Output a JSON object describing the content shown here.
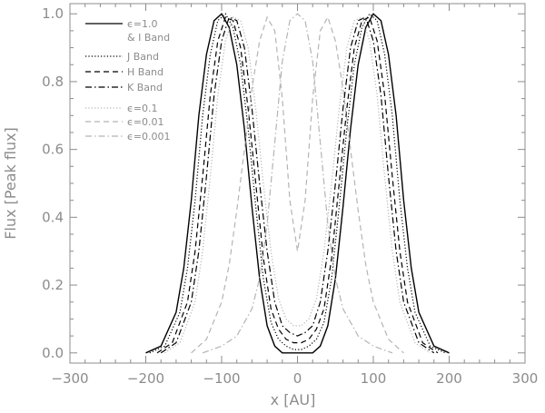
{
  "chart_data": {
    "type": "line",
    "title": "",
    "xlabel": "x   [AU]",
    "ylabel": "Flux  [Peak flux]",
    "xlim": [
      -300,
      300
    ],
    "ylim": [
      -0.03,
      1.03
    ],
    "x_ticks": [
      -300,
      -200,
      -100,
      0,
      100,
      200,
      300
    ],
    "x_tick_labels": [
      "−300",
      "−200",
      "−100",
      "0",
      "100",
      "200",
      "300"
    ],
    "y_ticks": [
      0.0,
      0.2,
      0.4,
      0.6,
      0.8,
      1.0
    ],
    "y_tick_labels": [
      "0.0",
      "0.2",
      "0.4",
      "0.6",
      "0.8",
      "1.0"
    ],
    "grid": false,
    "legend_position": "top-left",
    "legend": [
      {
        "label": "ϵ=1.0",
        "sub_label": "& I Band",
        "style": "solid",
        "color": "#000000"
      },
      {
        "label": "J Band",
        "style": "dotted",
        "color": "#000000"
      },
      {
        "label": "H Band",
        "style": "dashed",
        "color": "#000000"
      },
      {
        "label": "K Band",
        "style": "dashdot",
        "color": "#000000"
      },
      {
        "label": "ϵ=0.1",
        "style": "dotted",
        "color": "#b4b4b4"
      },
      {
        "label": "ϵ=0.01",
        "style": "dashed",
        "color": "#b4b4b4"
      },
      {
        "label": "ϵ=0.001",
        "style": "dashdot",
        "color": "#b4b4b4"
      }
    ],
    "series": [
      {
        "style": "solid",
        "color": "#000000",
        "x": [
          -200,
          -180,
          -160,
          -150,
          -140,
          -130,
          -120,
          -110,
          -100,
          -90,
          -80,
          -70,
          -60,
          -50,
          -40,
          -30,
          -20,
          -10,
          0,
          10,
          20,
          30,
          40,
          50,
          60,
          70,
          80,
          90,
          100,
          110,
          120,
          130,
          140,
          150,
          160,
          180,
          200
        ],
        "y": [
          0.0,
          0.02,
          0.12,
          0.25,
          0.45,
          0.7,
          0.88,
          0.98,
          1.0,
          0.96,
          0.85,
          0.66,
          0.43,
          0.22,
          0.08,
          0.02,
          0.0,
          0.0,
          0.0,
          0.0,
          0.0,
          0.02,
          0.08,
          0.22,
          0.43,
          0.66,
          0.85,
          0.96,
          1.0,
          0.98,
          0.88,
          0.7,
          0.45,
          0.25,
          0.12,
          0.02,
          0.0
        ]
      },
      {
        "style": "dotted",
        "color": "#000000",
        "x": [
          -195,
          -175,
          -155,
          -145,
          -135,
          -125,
          -115,
          -105,
          -95,
          -85,
          -75,
          -65,
          -55,
          -45,
          -35,
          -25,
          -15,
          -5,
          0,
          5,
          15,
          25,
          35,
          45,
          55,
          65,
          75,
          85,
          95,
          105,
          115,
          125,
          135,
          145,
          155,
          175,
          195
        ],
        "y": [
          0.0,
          0.02,
          0.12,
          0.25,
          0.45,
          0.7,
          0.88,
          0.98,
          1.0,
          0.96,
          0.85,
          0.66,
          0.43,
          0.22,
          0.09,
          0.04,
          0.02,
          0.01,
          0.01,
          0.01,
          0.02,
          0.04,
          0.09,
          0.22,
          0.43,
          0.66,
          0.85,
          0.96,
          1.0,
          0.98,
          0.88,
          0.7,
          0.45,
          0.25,
          0.12,
          0.02,
          0.0
        ]
      },
      {
        "style": "dashed",
        "color": "#000000",
        "x": [
          -185,
          -165,
          -145,
          -135,
          -125,
          -115,
          -105,
          -95,
          -85,
          -75,
          -65,
          -55,
          -45,
          -35,
          -25,
          -15,
          -5,
          0,
          5,
          15,
          25,
          35,
          45,
          55,
          65,
          75,
          85,
          95,
          105,
          115,
          125,
          135,
          145,
          165,
          185
        ],
        "y": [
          0.0,
          0.03,
          0.15,
          0.3,
          0.52,
          0.76,
          0.92,
          0.99,
          0.98,
          0.9,
          0.72,
          0.5,
          0.28,
          0.13,
          0.07,
          0.04,
          0.03,
          0.03,
          0.03,
          0.04,
          0.07,
          0.13,
          0.28,
          0.5,
          0.72,
          0.9,
          0.98,
          0.99,
          0.92,
          0.76,
          0.52,
          0.3,
          0.15,
          0.03,
          0.0
        ]
      },
      {
        "style": "dashdot",
        "color": "#000000",
        "x": [
          -180,
          -160,
          -140,
          -130,
          -120,
          -110,
          -100,
          -90,
          -80,
          -70,
          -60,
          -50,
          -40,
          -30,
          -20,
          -10,
          0,
          10,
          20,
          30,
          40,
          50,
          60,
          70,
          80,
          90,
          100,
          110,
          120,
          130,
          140,
          160,
          180
        ],
        "y": [
          0.0,
          0.03,
          0.15,
          0.3,
          0.52,
          0.76,
          0.92,
          0.99,
          0.98,
          0.9,
          0.72,
          0.5,
          0.3,
          0.15,
          0.08,
          0.06,
          0.05,
          0.06,
          0.08,
          0.15,
          0.3,
          0.5,
          0.72,
          0.9,
          0.98,
          0.99,
          0.92,
          0.76,
          0.52,
          0.3,
          0.15,
          0.03,
          0.0
        ]
      },
      {
        "style": "dotted",
        "color": "#b4b4b4",
        "x": [
          -175,
          -155,
          -135,
          -125,
          -115,
          -105,
          -95,
          -85,
          -75,
          -65,
          -55,
          -45,
          -35,
          -25,
          -15,
          -5,
          0,
          5,
          15,
          25,
          35,
          45,
          55,
          65,
          75,
          85,
          95,
          105,
          115,
          125,
          135,
          155,
          175
        ],
        "y": [
          0.0,
          0.03,
          0.15,
          0.3,
          0.52,
          0.76,
          0.92,
          0.99,
          0.98,
          0.9,
          0.72,
          0.5,
          0.3,
          0.16,
          0.1,
          0.08,
          0.08,
          0.08,
          0.1,
          0.16,
          0.3,
          0.5,
          0.72,
          0.9,
          0.98,
          0.99,
          0.92,
          0.76,
          0.52,
          0.3,
          0.15,
          0.03,
          0.0
        ]
      },
      {
        "style": "dashed",
        "color": "#b4b4b4",
        "x": [
          -140,
          -120,
          -100,
          -90,
          -80,
          -70,
          -60,
          -50,
          -40,
          -30,
          -20,
          -10,
          0,
          10,
          20,
          30,
          40,
          50,
          60,
          70,
          80,
          90,
          100,
          120,
          140
        ],
        "y": [
          0.0,
          0.04,
          0.15,
          0.26,
          0.42,
          0.6,
          0.78,
          0.92,
          0.99,
          0.95,
          0.75,
          0.45,
          0.3,
          0.45,
          0.75,
          0.95,
          0.99,
          0.92,
          0.78,
          0.6,
          0.42,
          0.26,
          0.15,
          0.04,
          0.0
        ]
      },
      {
        "style": "dashdot",
        "color": "#b4b4b4",
        "x": [
          -125,
          -100,
          -80,
          -60,
          -50,
          -40,
          -30,
          -20,
          -10,
          0,
          10,
          20,
          30,
          40,
          50,
          60,
          80,
          100,
          125
        ],
        "y": [
          0.0,
          0.02,
          0.05,
          0.13,
          0.22,
          0.38,
          0.62,
          0.86,
          0.98,
          1.0,
          0.98,
          0.86,
          0.62,
          0.38,
          0.22,
          0.13,
          0.05,
          0.02,
          0.0
        ]
      }
    ]
  }
}
